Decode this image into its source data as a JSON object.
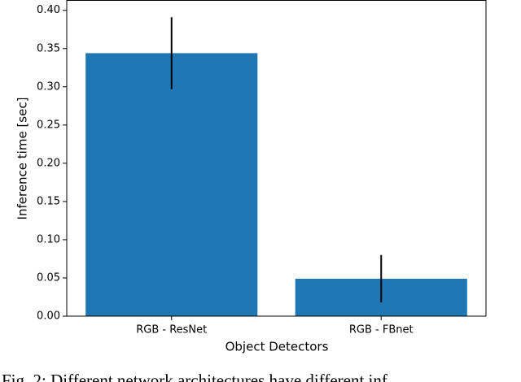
{
  "chart_data": {
    "type": "bar",
    "categories": [
      "RGB - ResNet",
      "RGB - FBnet"
    ],
    "values": [
      0.344,
      0.049
    ],
    "errors": [
      0.047,
      0.031
    ],
    "color": "#1f77b4",
    "xlabel": "Object Detectors",
    "ylabel": "Inference time [sec]",
    "ylim": [
      0,
      0.413
    ],
    "yticks": [
      {
        "value": 0,
        "label": "0.00"
      },
      {
        "value": 0.05,
        "label": "0.05"
      },
      {
        "value": 0.1,
        "label": "0.10"
      },
      {
        "value": 0.15,
        "label": "0.15"
      },
      {
        "value": 0.2,
        "label": "0.20"
      },
      {
        "value": 0.25,
        "label": "0.25"
      },
      {
        "value": 0.3,
        "label": "0.30"
      },
      {
        "value": 0.35,
        "label": "0.35"
      },
      {
        "value": 0.4,
        "label": "0.40"
      }
    ],
    "caption": "Fig. 2: Different network architectures have different inf"
  }
}
